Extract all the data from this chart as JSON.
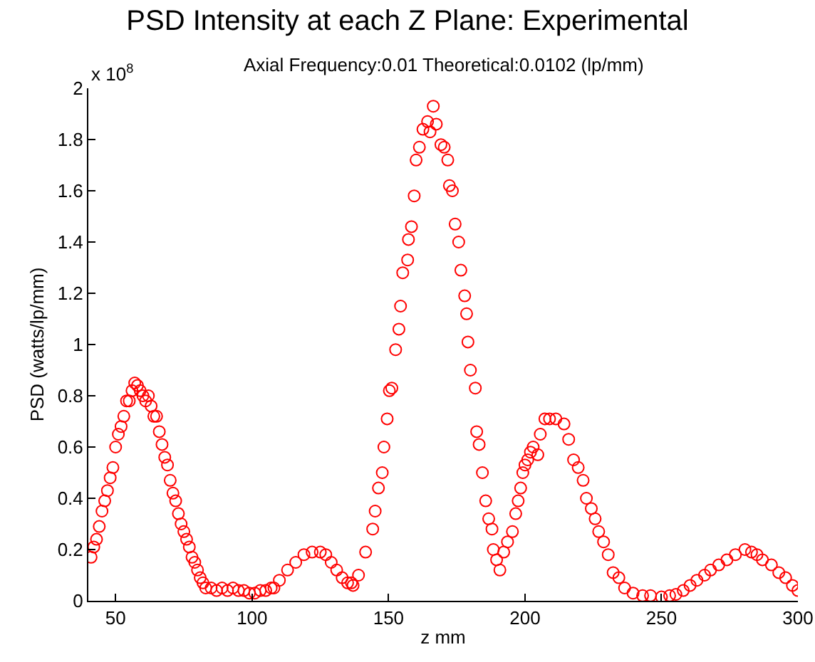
{
  "chart_data": {
    "type": "scatter",
    "title": "PSD Intensity at each Z Plane: Experimental",
    "subtitle": "Axial Frequency:0.01 Theoretical:0.0102 (lp/mm)",
    "xlabel": "z mm",
    "ylabel": "PSD (watts/lp/mm)",
    "annotations": [
      "x 10$^{8}$"
    ],
    "marker": "circle",
    "xlim": [
      40,
      300
    ],
    "xticks": [
      50,
      100,
      150,
      200,
      250,
      300
    ],
    "ylim": [
      0,
      2
    ],
    "yticks": [
      0,
      0.2,
      0.4,
      0.6,
      0.8,
      1,
      1.2,
      1.4,
      1.6,
      1.8,
      2
    ],
    "series": [
      {
        "color": "#ff0000",
        "x": [
          41,
          42,
          43,
          44,
          45,
          46,
          47,
          48,
          49,
          50,
          51,
          52,
          53,
          54,
          55,
          56,
          57,
          58,
          59,
          60,
          61,
          62,
          63,
          64,
          65,
          66,
          67,
          68,
          69,
          70,
          71,
          72,
          73,
          74,
          75,
          76,
          77,
          78,
          79,
          80,
          81,
          82,
          83,
          85,
          87,
          89,
          91,
          93,
          95,
          97,
          99,
          101,
          103,
          105,
          107,
          108,
          110,
          113,
          116,
          119,
          122,
          125,
          127,
          129,
          131,
          133,
          135,
          136.4,
          137,
          139,
          141.6,
          144.2,
          145.1,
          146.3,
          147.7,
          148.3,
          149.5,
          150.3,
          151.2,
          152.6,
          153.8,
          154.4,
          155.2,
          157,
          157.3,
          158.4,
          159.4,
          160.1,
          161.3,
          162.6,
          164.3,
          165.2,
          166.4,
          167.5,
          169.2,
          170.4,
          171.7,
          172.3,
          173.4,
          174.4,
          175.7,
          176.5,
          177.9,
          178.6,
          179.1,
          180,
          181.8,
          182.3,
          183.2,
          184.4,
          185.6,
          186.7,
          187.9,
          188.4,
          189.6,
          190.8,
          192.2,
          193.6,
          195.4,
          196.6,
          197.5,
          198.4,
          199.2,
          200,
          201,
          202,
          203,
          204.7,
          205.6,
          207.3,
          209,
          211.3,
          214.3,
          216,
          217.8,
          219.5,
          221.3,
          222.5,
          224.3,
          225.7,
          227,
          228.8,
          230.5,
          232.3,
          234.4,
          236.5,
          239.6,
          243.1,
          246,
          250,
          253,
          255.3,
          258,
          260.5,
          263,
          265.8,
          268,
          271,
          274,
          277.1,
          280.6,
          283,
          285,
          287,
          290.3,
          293,
          295.5,
          298,
          300
        ],
        "values": [
          0.17,
          0.21,
          0.24,
          0.29,
          0.35,
          0.39,
          0.43,
          0.48,
          0.52,
          0.6,
          0.65,
          0.68,
          0.72,
          0.78,
          0.78,
          0.82,
          0.85,
          0.84,
          0.82,
          0.8,
          0.78,
          0.8,
          0.76,
          0.72,
          0.72,
          0.66,
          0.61,
          0.56,
          0.53,
          0.47,
          0.42,
          0.39,
          0.34,
          0.3,
          0.27,
          0.24,
          0.21,
          0.17,
          0.15,
          0.12,
          0.09,
          0.07,
          0.05,
          0.05,
          0.04,
          0.05,
          0.04,
          0.05,
          0.04,
          0.04,
          0.03,
          0.03,
          0.04,
          0.04,
          0.05,
          0.05,
          0.08,
          0.12,
          0.15,
          0.18,
          0.19,
          0.19,
          0.18,
          0.15,
          0.12,
          0.09,
          0.07,
          0.07,
          0.06,
          0.1,
          0.19,
          0.28,
          0.35,
          0.44,
          0.5,
          0.6,
          0.71,
          0.82,
          0.83,
          0.98,
          1.06,
          1.15,
          1.28,
          1.33,
          1.41,
          1.46,
          1.58,
          1.72,
          1.77,
          1.84,
          1.87,
          1.83,
          1.93,
          1.86,
          1.78,
          1.77,
          1.72,
          1.62,
          1.6,
          1.47,
          1.4,
          1.29,
          1.19,
          1.12,
          1.01,
          0.9,
          0.83,
          0.66,
          0.61,
          0.5,
          0.39,
          0.32,
          0.28,
          0.2,
          0.16,
          0.12,
          0.19,
          0.23,
          0.27,
          0.34,
          0.39,
          0.44,
          0.5,
          0.53,
          0.55,
          0.58,
          0.6,
          0.57,
          0.65,
          0.71,
          0.71,
          0.71,
          0.69,
          0.63,
          0.55,
          0.52,
          0.47,
          0.4,
          0.36,
          0.32,
          0.27,
          0.23,
          0.18,
          0.11,
          0.09,
          0.05,
          0.03,
          0.02,
          0.02,
          0.015,
          0.02,
          0.025,
          0.04,
          0.06,
          0.08,
          0.1,
          0.12,
          0.14,
          0.16,
          0.18,
          0.2,
          0.19,
          0.18,
          0.16,
          0.14,
          0.11,
          0.09,
          0.06,
          0.04
        ]
      }
    ]
  }
}
